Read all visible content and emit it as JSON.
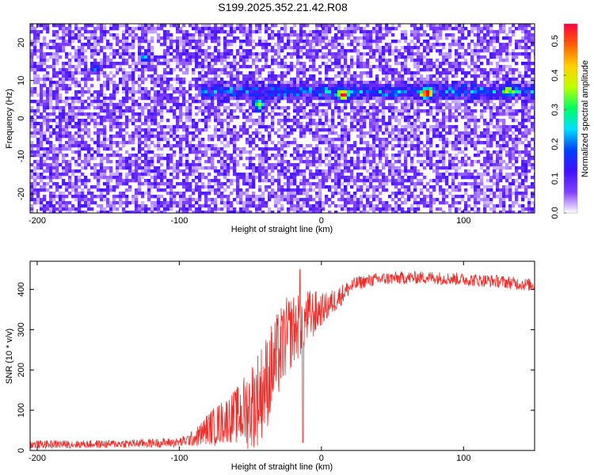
{
  "title": "S199.2025.352.21.42.R08",
  "chart_data": [
    {
      "type": "heatmap",
      "title": "S199.2025.352.21.42.R08",
      "xlabel": "Height of straight line (km)",
      "ylabel": "Frequency (Hz)",
      "xlim": [
        -205,
        150
      ],
      "ylim": [
        -25,
        25
      ],
      "x_ticks": [
        -200,
        -100,
        0,
        100
      ],
      "y_ticks": [
        -20,
        -10,
        0,
        10,
        20
      ],
      "colorbar": {
        "label": "Normalized spectral amplitude",
        "range": [
          0.0,
          0.55
        ],
        "ticks": [
          0.0,
          0.1,
          0.2,
          0.3,
          0.4,
          0.5
        ],
        "colors": [
          "#ffffff",
          "#8040ff",
          "#4010ff",
          "#0040ff",
          "#00e0ff",
          "#00ff60",
          "#c0ff00",
          "#ffd000",
          "#ff6000",
          "#ff0040"
        ]
      },
      "signal_band": {
        "x_range": [
          -85,
          150
        ],
        "freq_hz": 7.5,
        "background_level": 0.08,
        "peak_level": 0.55
      },
      "hotspots": [
        {
          "x": 14,
          "y": 6.5,
          "value": 0.5
        },
        {
          "x": 73,
          "y": 7,
          "value": 0.48
        },
        {
          "x": -45,
          "y": 4,
          "value": 0.3
        },
        {
          "x": 130,
          "y": 8,
          "value": 0.25
        },
        {
          "x": -160,
          "y": 13.5,
          "value": 0.15
        },
        {
          "x": -125,
          "y": 16.5,
          "value": 0.15
        }
      ]
    },
    {
      "type": "line",
      "xlabel": "Height of straight line (km)",
      "ylabel": "SNR (10 * v/v)",
      "xlim": [
        -205,
        150
      ],
      "ylim": [
        0,
        470
      ],
      "x_ticks": [
        -200,
        -100,
        0,
        100
      ],
      "y_ticks": [
        0,
        100,
        200,
        300,
        400
      ],
      "series": [
        {
          "color": "#e8302c",
          "x": [
            -205,
            -150,
            -100,
            -95,
            -90,
            -85,
            -80,
            -75,
            -70,
            -65,
            -60,
            -55,
            -50,
            -45,
            -40,
            -35,
            -30,
            -25,
            -20,
            -15,
            -10,
            -5,
            0,
            5,
            10,
            15,
            20,
            25,
            30,
            40,
            50,
            75,
            100,
            125,
            150
          ],
          "y": [
            15,
            16,
            20,
            25,
            30,
            40,
            55,
            60,
            70,
            80,
            85,
            95,
            110,
            130,
            160,
            200,
            240,
            280,
            300,
            310,
            330,
            340,
            350,
            360,
            375,
            390,
            405,
            415,
            420,
            425,
            428,
            430,
            425,
            420,
            410
          ],
          "noise": [
            10,
            10,
            12,
            15,
            20,
            30,
            40,
            50,
            55,
            60,
            70,
            90,
            110,
            120,
            120,
            120,
            110,
            100,
            90,
            80,
            70,
            60,
            40,
            35,
            30,
            25,
            20,
            18,
            16,
            16,
            16,
            16,
            16,
            16,
            16
          ],
          "spikes": [
            {
              "x": -15,
              "y": 450
            },
            {
              "x": -13,
              "y": 20
            }
          ]
        }
      ]
    }
  ]
}
